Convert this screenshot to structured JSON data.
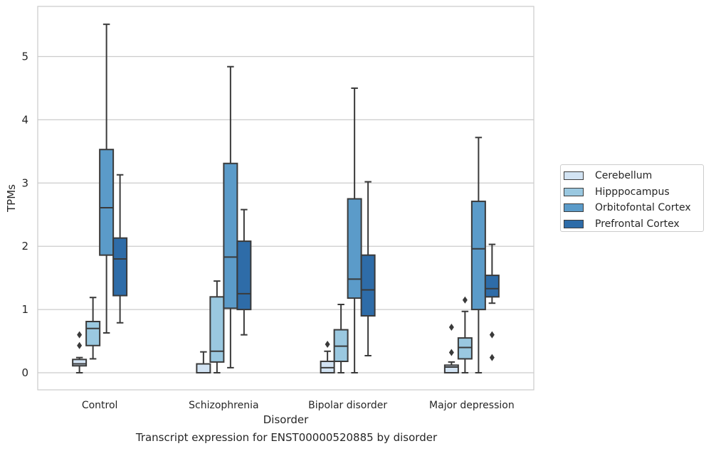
{
  "caption": "Transcript expression for ENST00000520885 by disorder",
  "chart_data": {
    "type": "boxplot",
    "xlabel": "Disorder",
    "ylabel": "TPMs",
    "ylim": [
      -0.27,
      5.85
    ],
    "yticks": [
      0,
      1,
      2,
      3,
      4,
      5
    ],
    "grid": "horizontal",
    "legend_position": "right",
    "categories": [
      "Control",
      "Schizophrenia",
      "Bipolar disorder",
      "Major depression"
    ],
    "series": [
      {
        "name": "Cerebellum",
        "color": "#d2e3f3",
        "boxes": [
          {
            "whislo": 0.0,
            "q1": 0.11,
            "med": 0.14,
            "q3": 0.21,
            "whishi": 0.24,
            "fliers": [
              0.43,
              0.6
            ]
          },
          {
            "whislo": 0.0,
            "q1": 0.0,
            "med": 0.0,
            "q3": 0.14,
            "whishi": 0.33,
            "fliers": []
          },
          {
            "whislo": 0.0,
            "q1": 0.0,
            "med": 0.08,
            "q3": 0.18,
            "whishi": 0.34,
            "fliers": [
              0.45
            ]
          },
          {
            "whislo": 0.0,
            "q1": 0.0,
            "med": 0.09,
            "q3": 0.12,
            "whishi": 0.17,
            "fliers": [
              0.32,
              0.72
            ]
          }
        ]
      },
      {
        "name": "Hipppocampus",
        "color": "#9ac8e0",
        "boxes": [
          {
            "whislo": 0.22,
            "q1": 0.43,
            "med": 0.7,
            "q3": 0.81,
            "whishi": 1.19,
            "fliers": []
          },
          {
            "whislo": 0.0,
            "q1": 0.17,
            "med": 0.34,
            "q3": 1.2,
            "whishi": 1.45,
            "fliers": []
          },
          {
            "whislo": 0.0,
            "q1": 0.18,
            "med": 0.42,
            "q3": 0.68,
            "whishi": 1.08,
            "fliers": []
          },
          {
            "whislo": 0.0,
            "q1": 0.22,
            "med": 0.4,
            "q3": 0.55,
            "whishi": 0.97,
            "fliers": [
              1.15
            ]
          }
        ]
      },
      {
        "name": "Orbitofontal Cortex",
        "color": "#5b9bc9",
        "boxes": [
          {
            "whislo": 0.63,
            "q1": 1.86,
            "med": 2.61,
            "q3": 3.53,
            "whishi": 5.51,
            "fliers": []
          },
          {
            "whislo": 0.08,
            "q1": 1.02,
            "med": 1.83,
            "q3": 3.31,
            "whishi": 4.84,
            "fliers": []
          },
          {
            "whislo": 0.0,
            "q1": 1.18,
            "med": 1.48,
            "q3": 2.75,
            "whishi": 4.5,
            "fliers": []
          },
          {
            "whislo": 0.0,
            "q1": 1.0,
            "med": 1.96,
            "q3": 2.71,
            "whishi": 3.72,
            "fliers": []
          }
        ]
      },
      {
        "name": "Prefrontal Cortex",
        "color": "#2e6ca8",
        "boxes": [
          {
            "whislo": 0.79,
            "q1": 1.22,
            "med": 1.8,
            "q3": 2.13,
            "whishi": 3.13,
            "fliers": []
          },
          {
            "whislo": 0.6,
            "q1": 1.0,
            "med": 1.25,
            "q3": 2.08,
            "whishi": 2.58,
            "fliers": []
          },
          {
            "whislo": 0.27,
            "q1": 0.9,
            "med": 1.31,
            "q3": 1.86,
            "whishi": 3.02,
            "fliers": []
          },
          {
            "whislo": 1.1,
            "q1": 1.2,
            "med": 1.33,
            "q3": 1.54,
            "whishi": 2.03,
            "fliers": [
              0.24,
              0.6
            ]
          }
        ]
      }
    ]
  }
}
